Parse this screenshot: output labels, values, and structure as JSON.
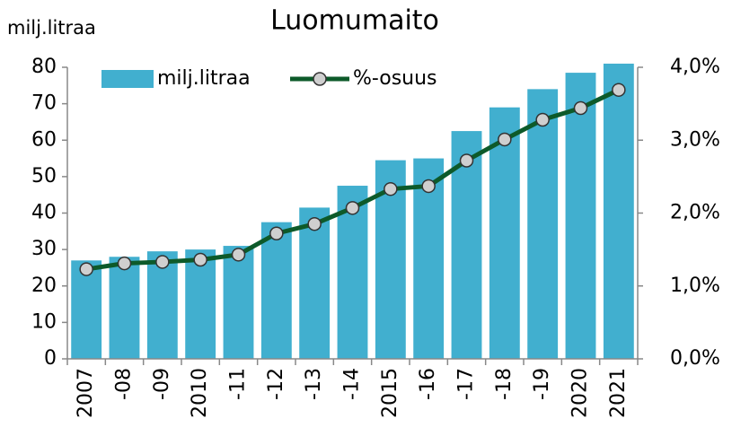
{
  "chart_data": {
    "type": "bar",
    "title": "Luomumaito",
    "y_label": "milj.litraa",
    "categories": [
      "2007",
      "-08",
      "-09",
      "2010",
      "-11",
      "-12",
      "-13",
      "-14",
      "2015",
      "-16",
      "-17",
      "-18",
      "-19",
      "2020",
      "2021"
    ],
    "series": [
      {
        "name": "milj.litraa",
        "type": "bar",
        "color": "#41afcf",
        "axis": "y",
        "values": [
          27,
          28,
          29.5,
          30,
          31,
          37.5,
          41.5,
          47.5,
          54.5,
          55,
          62.5,
          69,
          74,
          78.5,
          81
        ]
      },
      {
        "name": "%-osuus",
        "type": "line",
        "color": "#0d5a2a",
        "marker_color": "#cfcfcf",
        "axis": "y2",
        "values": [
          1.23,
          1.31,
          1.33,
          1.36,
          1.43,
          1.72,
          1.85,
          2.07,
          2.33,
          2.37,
          2.72,
          3.01,
          3.28,
          3.44,
          3.69
        ]
      }
    ],
    "ylim": [
      0,
      80
    ],
    "yticks": [
      0,
      10,
      20,
      30,
      40,
      50,
      60,
      70,
      80
    ],
    "y2lim": [
      0,
      4
    ],
    "y2ticks": [
      {
        "value": 0,
        "label": "0,0%"
      },
      {
        "value": 1,
        "label": "1,0%"
      },
      {
        "value": 2,
        "label": "2,0%"
      },
      {
        "value": 3,
        "label": "3,0%"
      },
      {
        "value": 4,
        "label": "4,0%"
      }
    ],
    "legend": "top-left"
  }
}
